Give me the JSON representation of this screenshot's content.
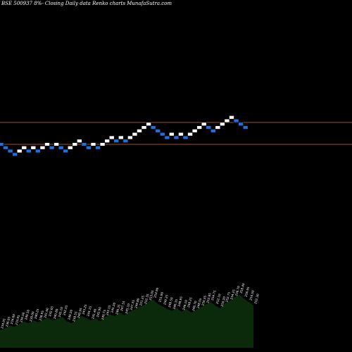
{
  "chart_data": {
    "type": "renko",
    "title": "BSE 500937 8%- Closing Daily data Renko charts MunafaSutra.com",
    "colors": {
      "background": "#000000",
      "up_brick": "#ffffff",
      "down_brick": "#1e6fe0",
      "reference_line": "#a0522d",
      "volume_area": "#0b2a0b",
      "volume_label": "#ffffff"
    },
    "price_scale": {
      "min": 219,
      "max": 265
    },
    "reference_lines": [
      {
        "name": "upper",
        "value": 255
      },
      {
        "name": "lower",
        "value": 242
      }
    ],
    "bricks": [
      {
        "dir": "down",
        "low": 241,
        "high": 243
      },
      {
        "dir": "down",
        "low": 239,
        "high": 241
      },
      {
        "dir": "down",
        "low": 237,
        "high": 239
      },
      {
        "dir": "down",
        "low": 235,
        "high": 237
      },
      {
        "dir": "up",
        "low": 237,
        "high": 239
      },
      {
        "dir": "up",
        "low": 239,
        "high": 241
      },
      {
        "dir": "down",
        "low": 237,
        "high": 239
      },
      {
        "dir": "up",
        "low": 239,
        "high": 241
      },
      {
        "dir": "down",
        "low": 237,
        "high": 239
      },
      {
        "dir": "up",
        "low": 239,
        "high": 241
      },
      {
        "dir": "up",
        "low": 241,
        "high": 243
      },
      {
        "dir": "down",
        "low": 239,
        "high": 241
      },
      {
        "dir": "up",
        "low": 241,
        "high": 243
      },
      {
        "dir": "down",
        "low": 239,
        "high": 241
      },
      {
        "dir": "down",
        "low": 237,
        "high": 239
      },
      {
        "dir": "up",
        "low": 239,
        "high": 241
      },
      {
        "dir": "up",
        "low": 241,
        "high": 243
      },
      {
        "dir": "up",
        "low": 243,
        "high": 245
      },
      {
        "dir": "down",
        "low": 241,
        "high": 243
      },
      {
        "dir": "down",
        "low": 239,
        "high": 241
      },
      {
        "dir": "up",
        "low": 241,
        "high": 243
      },
      {
        "dir": "down",
        "low": 239,
        "high": 241
      },
      {
        "dir": "up",
        "low": 241,
        "high": 243
      },
      {
        "dir": "up",
        "low": 243,
        "high": 245
      },
      {
        "dir": "up",
        "low": 245,
        "high": 247
      },
      {
        "dir": "down",
        "low": 243,
        "high": 245
      },
      {
        "dir": "up",
        "low": 245,
        "high": 247
      },
      {
        "dir": "down",
        "low": 243,
        "high": 245
      },
      {
        "dir": "up",
        "low": 245,
        "high": 247
      },
      {
        "dir": "up",
        "low": 247,
        "high": 249
      },
      {
        "dir": "up",
        "low": 249,
        "high": 251
      },
      {
        "dir": "up",
        "low": 251,
        "high": 253
      },
      {
        "dir": "up",
        "low": 253,
        "high": 255
      },
      {
        "dir": "down",
        "low": 251,
        "high": 253
      },
      {
        "dir": "down",
        "low": 249,
        "high": 251
      },
      {
        "dir": "down",
        "low": 247,
        "high": 249
      },
      {
        "dir": "down",
        "low": 245,
        "high": 247
      },
      {
        "dir": "up",
        "low": 247,
        "high": 249
      },
      {
        "dir": "down",
        "low": 245,
        "high": 247
      },
      {
        "dir": "up",
        "low": 247,
        "high": 249
      },
      {
        "dir": "down",
        "low": 245,
        "high": 247
      },
      {
        "dir": "up",
        "low": 247,
        "high": 249
      },
      {
        "dir": "up",
        "low": 249,
        "high": 251
      },
      {
        "dir": "up",
        "low": 251,
        "high": 253
      },
      {
        "dir": "up",
        "low": 253,
        "high": 255
      },
      {
        "dir": "down",
        "low": 251,
        "high": 253
      },
      {
        "dir": "down",
        "low": 249,
        "high": 251
      },
      {
        "dir": "up",
        "low": 251,
        "high": 253
      },
      {
        "dir": "up",
        "low": 253,
        "high": 255
      },
      {
        "dir": "up",
        "low": 255,
        "high": 257
      },
      {
        "dir": "up",
        "low": 257,
        "high": 259
      },
      {
        "dir": "down",
        "low": 255,
        "high": 257
      },
      {
        "dir": "down",
        "low": 253,
        "high": 255
      },
      {
        "dir": "down",
        "low": 251,
        "high": 253
      }
    ],
    "volume_profile": [
      20,
      22,
      25,
      24,
      27,
      30,
      28,
      31,
      29,
      32,
      34,
      31,
      33,
      35,
      30,
      28,
      32,
      36,
      34,
      31,
      33,
      30,
      35,
      38,
      36,
      40,
      37,
      41,
      43,
      46,
      48,
      52,
      55,
      50,
      47,
      44,
      42,
      45,
      41,
      44,
      40,
      43,
      46,
      49,
      52,
      48,
      45,
      50,
      53,
      57,
      60,
      56,
      52,
      48
    ],
    "volume_labels": [
      "234.05",
      "236.95",
      "234.60",
      "233.95",
      "236.50",
      "240.10",
      "239.00",
      "240.25",
      "238.95",
      "241.60",
      "242.65",
      "240.80",
      "242.10",
      "242.55",
      "240.20",
      "238.55",
      "240.95",
      "243.25",
      "244.15",
      "241.40",
      "242.90",
      "240.75",
      "243.15",
      "245.20",
      "246.35",
      "247.55",
      "245.10",
      "247.35",
      "249.80",
      "251.25",
      "252.35",
      "253.05",
      "254.90",
      "251.90",
      "250.25",
      "248.50",
      "246.35",
      "248.95",
      "246.10",
      "248.25",
      "246.70",
      "248.55",
      "250.35",
      "252.85",
      "254.75",
      "252.10",
      "250.20",
      "252.75",
      "254.25",
      "256.70",
      "258.40",
      "256.95",
      "254.50",
      "252.30"
    ]
  }
}
